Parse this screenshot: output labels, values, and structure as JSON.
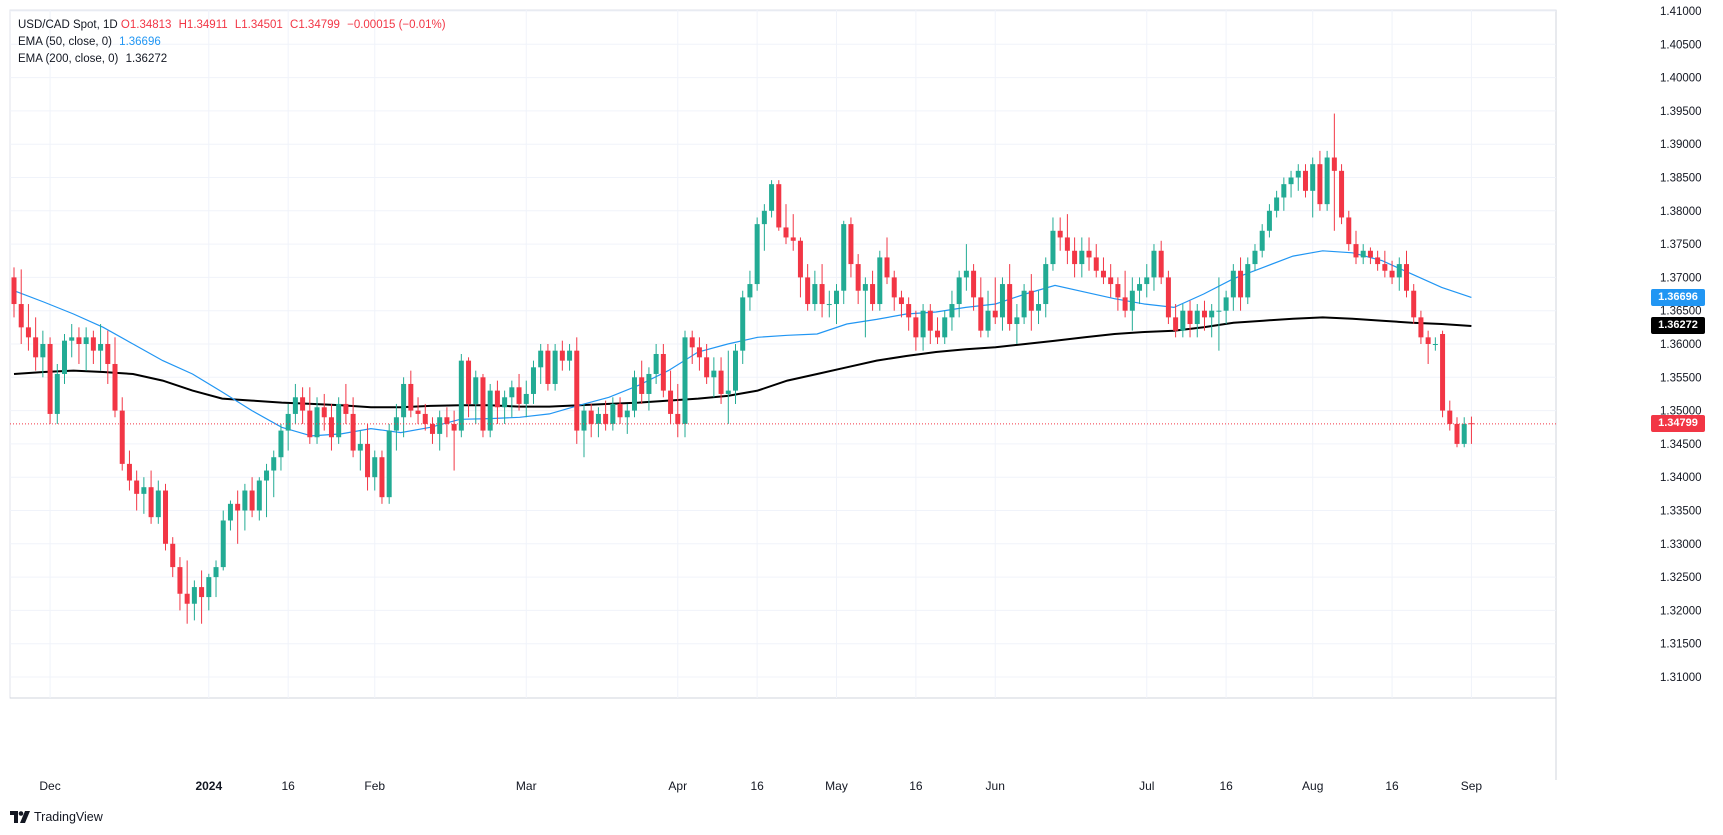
{
  "legend": {
    "symbol": "USD/CAD Spot, 1D",
    "open": "O1.34813",
    "high": "H1.34911",
    "low": "L1.34501",
    "close": "C1.34799",
    "change": "−0.00015 (−0.01%)",
    "ema50_label": "EMA (50, close, 0)",
    "ema50_value": "1.36696",
    "ema200_label": "EMA (200, close, 0)",
    "ema200_value": "1.36272"
  },
  "badges": {
    "ema50": "1.36696",
    "ema200": "1.36272",
    "last": "1.34799"
  },
  "brand": "TradingView",
  "colors": {
    "up": "#22ab94",
    "down": "#f23645",
    "ema50": "#2196f3",
    "ema200": "#000000",
    "grid": "#f0f3fa",
    "axis_text": "#131722"
  },
  "chart_data": {
    "type": "candlestick",
    "title": "USD/CAD Spot, 1D",
    "ylim": [
      1.305,
      1.41
    ],
    "y_ticks": [
      "1.41000",
      "1.40500",
      "1.40000",
      "1.39500",
      "1.39000",
      "1.38500",
      "1.38000",
      "1.37500",
      "1.37000",
      "1.36500",
      "1.36000",
      "1.35500",
      "1.35000",
      "1.34500",
      "1.34000",
      "1.33500",
      "1.33000",
      "1.32500",
      "1.32000",
      "1.31500",
      "1.31000"
    ],
    "x_ticks": [
      {
        "label": "Dec",
        "bar": 5
      },
      {
        "label": "2024",
        "bar": 27
      },
      {
        "label": "16",
        "bar": 38
      },
      {
        "label": "Feb",
        "bar": 50
      },
      {
        "label": "Mar",
        "bar": 71
      },
      {
        "label": "Apr",
        "bar": 92
      },
      {
        "label": "16",
        "bar": 103
      },
      {
        "label": "May",
        "bar": 114
      },
      {
        "label": "16",
        "bar": 125
      },
      {
        "label": "Jun",
        "bar": 136
      },
      {
        "label": "Jul",
        "bar": 157
      },
      {
        "label": "16",
        "bar": 168
      },
      {
        "label": "Aug",
        "bar": 180
      },
      {
        "label": "16",
        "bar": 191
      },
      {
        "label": "Sep",
        "bar": 202
      }
    ],
    "ema50": [
      1.368,
      1.3663,
      1.3645,
      1.3625,
      1.36,
      1.3575,
      1.3555,
      1.3528,
      1.35,
      1.3475,
      1.3462,
      1.3465,
      1.3473,
      1.3467,
      1.3475,
      1.3487,
      1.3488,
      1.349,
      1.3495,
      1.3508,
      1.352,
      1.3538,
      1.356,
      1.3588,
      1.36,
      1.361,
      1.3613,
      1.3615,
      1.363,
      1.3637,
      1.3645,
      1.3648,
      1.3655,
      1.366,
      1.3675,
      1.3688,
      1.3678,
      1.3668,
      1.366,
      1.3655,
      1.3675,
      1.3698,
      1.3715,
      1.3732,
      1.374,
      1.3737,
      1.3725,
      1.3705,
      1.3685,
      1.367
    ],
    "ema200": [
      1.3555,
      1.3558,
      1.356,
      1.3558,
      1.3555,
      1.3545,
      1.353,
      1.3518,
      1.3515,
      1.3512,
      1.351,
      1.3508,
      1.3505,
      1.3505,
      1.3507,
      1.3508,
      1.3508,
      1.3506,
      1.3506,
      1.3508,
      1.351,
      1.3512,
      1.3515,
      1.3518,
      1.3522,
      1.353,
      1.3545,
      1.3555,
      1.3565,
      1.3575,
      1.3582,
      1.3588,
      1.3592,
      1.3595,
      1.36,
      1.3605,
      1.361,
      1.3615,
      1.3618,
      1.362,
      1.3625,
      1.3632,
      1.3635,
      1.3638,
      1.364,
      1.3638,
      1.3635,
      1.3632,
      1.363,
      1.3627
    ],
    "ohlc": [
      [
        1.37,
        1.3715,
        1.364,
        1.366
      ],
      [
        1.366,
        1.3712,
        1.36,
        1.3625
      ],
      [
        1.3625,
        1.366,
        1.359,
        1.361
      ],
      [
        1.361,
        1.364,
        1.356,
        1.358
      ],
      [
        1.358,
        1.362,
        1.355,
        1.36
      ],
      [
        1.36,
        1.361,
        1.348,
        1.3495
      ],
      [
        1.3495,
        1.357,
        1.348,
        1.3555
      ],
      [
        1.3555,
        1.3615,
        1.354,
        1.3605
      ],
      [
        1.3605,
        1.363,
        1.358,
        1.361
      ],
      [
        1.361,
        1.3625,
        1.357,
        1.36
      ],
      [
        1.36,
        1.3625,
        1.356,
        1.361
      ],
      [
        1.361,
        1.362,
        1.357,
        1.359
      ],
      [
        1.359,
        1.363,
        1.356,
        1.36
      ],
      [
        1.36,
        1.362,
        1.354,
        1.357
      ],
      [
        1.357,
        1.361,
        1.349,
        1.35
      ],
      [
        1.35,
        1.352,
        1.341,
        1.342
      ],
      [
        1.342,
        1.344,
        1.338,
        1.3395
      ],
      [
        1.3395,
        1.341,
        1.335,
        1.3375
      ],
      [
        1.3375,
        1.34,
        1.3345,
        1.3385
      ],
      [
        1.3385,
        1.341,
        1.333,
        1.334
      ],
      [
        1.334,
        1.3395,
        1.333,
        1.338
      ],
      [
        1.338,
        1.339,
        1.329,
        1.33
      ],
      [
        1.33,
        1.331,
        1.325,
        1.3265
      ],
      [
        1.3265,
        1.328,
        1.32,
        1.3225
      ],
      [
        1.3225,
        1.3275,
        1.318,
        1.321
      ],
      [
        1.321,
        1.3245,
        1.3185,
        1.3235
      ],
      [
        1.3235,
        1.326,
        1.318,
        1.322
      ],
      [
        1.322,
        1.3255,
        1.32,
        1.325
      ],
      [
        1.325,
        1.3275,
        1.322,
        1.3265
      ],
      [
        1.3265,
        1.335,
        1.326,
        1.3335
      ],
      [
        1.3335,
        1.3365,
        1.332,
        1.336
      ],
      [
        1.336,
        1.338,
        1.33,
        1.335
      ],
      [
        1.335,
        1.339,
        1.332,
        1.338
      ],
      [
        1.338,
        1.34,
        1.334,
        1.335
      ],
      [
        1.335,
        1.34,
        1.3335,
        1.3395
      ],
      [
        1.3395,
        1.342,
        1.334,
        1.341
      ],
      [
        1.341,
        1.344,
        1.337,
        1.343
      ],
      [
        1.343,
        1.348,
        1.341,
        1.347
      ],
      [
        1.347,
        1.351,
        1.344,
        1.3495
      ],
      [
        1.3495,
        1.354,
        1.348,
        1.352
      ],
      [
        1.352,
        1.3535,
        1.348,
        1.35
      ],
      [
        1.35,
        1.3535,
        1.345,
        1.346
      ],
      [
        1.346,
        1.352,
        1.345,
        1.3505
      ],
      [
        1.3505,
        1.3525,
        1.347,
        1.349
      ],
      [
        1.349,
        1.351,
        1.344,
        1.346
      ],
      [
        1.346,
        1.352,
        1.345,
        1.351
      ],
      [
        1.351,
        1.354,
        1.348,
        1.3495
      ],
      [
        1.3495,
        1.352,
        1.343,
        1.344
      ],
      [
        1.344,
        1.347,
        1.341,
        1.345
      ],
      [
        1.345,
        1.348,
        1.338,
        1.34
      ],
      [
        1.34,
        1.344,
        1.338,
        1.343
      ],
      [
        1.343,
        1.344,
        1.336,
        1.337
      ],
      [
        1.337,
        1.348,
        1.336,
        1.347
      ],
      [
        1.347,
        1.351,
        1.344,
        1.349
      ],
      [
        1.349,
        1.355,
        1.346,
        1.354
      ],
      [
        1.354,
        1.356,
        1.349,
        1.35
      ],
      [
        1.35,
        1.352,
        1.348,
        1.3495
      ],
      [
        1.3495,
        1.351,
        1.347,
        1.348
      ],
      [
        1.348,
        1.349,
        1.345,
        1.3465
      ],
      [
        1.3465,
        1.35,
        1.344,
        1.349
      ],
      [
        1.349,
        1.3505,
        1.346,
        1.348
      ],
      [
        1.348,
        1.35,
        1.341,
        1.347
      ],
      [
        1.347,
        1.3585,
        1.346,
        1.3575
      ],
      [
        1.3575,
        1.358,
        1.349,
        1.351
      ],
      [
        1.351,
        1.356,
        1.348,
        1.355
      ],
      [
        1.355,
        1.3555,
        1.346,
        1.347
      ],
      [
        1.347,
        1.354,
        1.346,
        1.353
      ],
      [
        1.353,
        1.3545,
        1.348,
        1.3505
      ],
      [
        1.3505,
        1.353,
        1.348,
        1.352
      ],
      [
        1.352,
        1.3545,
        1.349,
        1.3535
      ],
      [
        1.3535,
        1.3555,
        1.35,
        1.351
      ],
      [
        1.351,
        1.3545,
        1.349,
        1.3525
      ],
      [
        1.3525,
        1.3575,
        1.351,
        1.3565
      ],
      [
        1.3565,
        1.36,
        1.354,
        1.359
      ],
      [
        1.359,
        1.36,
        1.353,
        1.354
      ],
      [
        1.354,
        1.36,
        1.353,
        1.359
      ],
      [
        1.359,
        1.3605,
        1.356,
        1.3575
      ],
      [
        1.3575,
        1.36,
        1.356,
        1.359
      ],
      [
        1.359,
        1.361,
        1.345,
        1.347
      ],
      [
        1.347,
        1.351,
        1.343,
        1.35
      ],
      [
        1.35,
        1.351,
        1.346,
        1.348
      ],
      [
        1.348,
        1.3505,
        1.346,
        1.3495
      ],
      [
        1.3495,
        1.3515,
        1.347,
        1.348
      ],
      [
        1.348,
        1.352,
        1.347,
        1.351
      ],
      [
        1.351,
        1.352,
        1.348,
        1.349
      ],
      [
        1.349,
        1.351,
        1.3465,
        1.35
      ],
      [
        1.35,
        1.356,
        1.349,
        1.355
      ],
      [
        1.355,
        1.3575,
        1.351,
        1.3525
      ],
      [
        1.3525,
        1.3565,
        1.35,
        1.3555
      ],
      [
        1.3555,
        1.36,
        1.354,
        1.3585
      ],
      [
        1.3585,
        1.36,
        1.352,
        1.353
      ],
      [
        1.353,
        1.356,
        1.348,
        1.3495
      ],
      [
        1.3495,
        1.354,
        1.346,
        1.348
      ],
      [
        1.348,
        1.362,
        1.346,
        1.361
      ],
      [
        1.361,
        1.362,
        1.357,
        1.3595
      ],
      [
        1.3595,
        1.361,
        1.356,
        1.358
      ],
      [
        1.358,
        1.36,
        1.354,
        1.355
      ],
      [
        1.355,
        1.358,
        1.352,
        1.356
      ],
      [
        1.356,
        1.358,
        1.351,
        1.3525
      ],
      [
        1.3525,
        1.359,
        1.348,
        1.353
      ],
      [
        1.353,
        1.36,
        1.351,
        1.359
      ],
      [
        1.359,
        1.368,
        1.357,
        1.367
      ],
      [
        1.367,
        1.371,
        1.365,
        1.369
      ],
      [
        1.369,
        1.379,
        1.368,
        1.378
      ],
      [
        1.378,
        1.381,
        1.374,
        1.38
      ],
      [
        1.38,
        1.3846,
        1.379,
        1.384
      ],
      [
        1.384,
        1.3846,
        1.377,
        1.3775
      ],
      [
        1.3775,
        1.381,
        1.375,
        1.376
      ],
      [
        1.376,
        1.3795,
        1.374,
        1.3755
      ],
      [
        1.3755,
        1.376,
        1.367,
        1.37
      ],
      [
        1.37,
        1.372,
        1.365,
        1.366
      ],
      [
        1.366,
        1.371,
        1.365,
        1.369
      ],
      [
        1.369,
        1.372,
        1.364,
        1.366
      ],
      [
        1.366,
        1.368,
        1.364,
        1.366
      ],
      [
        1.366,
        1.369,
        1.363,
        1.368
      ],
      [
        1.368,
        1.3785,
        1.366,
        1.378
      ],
      [
        1.378,
        1.379,
        1.37,
        1.372
      ],
      [
        1.372,
        1.3735,
        1.366,
        1.368
      ],
      [
        1.368,
        1.37,
        1.361,
        1.369
      ],
      [
        1.369,
        1.371,
        1.365,
        1.366
      ],
      [
        1.366,
        1.374,
        1.365,
        1.373
      ],
      [
        1.373,
        1.376,
        1.369,
        1.37
      ],
      [
        1.37,
        1.371,
        1.365,
        1.367
      ],
      [
        1.367,
        1.368,
        1.364,
        1.366
      ],
      [
        1.366,
        1.367,
        1.362,
        1.364
      ],
      [
        1.364,
        1.365,
        1.359,
        1.361
      ],
      [
        1.361,
        1.366,
        1.359,
        1.365
      ],
      [
        1.365,
        1.366,
        1.36,
        1.362
      ],
      [
        1.362,
        1.364,
        1.36,
        1.361
      ],
      [
        1.361,
        1.365,
        1.36,
        1.364
      ],
      [
        1.364,
        1.368,
        1.362,
        1.366
      ],
      [
        1.366,
        1.371,
        1.364,
        1.37
      ],
      [
        1.37,
        1.375,
        1.368,
        1.371
      ],
      [
        1.371,
        1.372,
        1.365,
        1.367
      ],
      [
        1.367,
        1.37,
        1.361,
        1.362
      ],
      [
        1.362,
        1.368,
        1.361,
        1.365
      ],
      [
        1.365,
        1.37,
        1.363,
        1.364
      ],
      [
        1.364,
        1.37,
        1.362,
        1.369
      ],
      [
        1.369,
        1.372,
        1.362,
        1.363
      ],
      [
        1.363,
        1.366,
        1.36,
        1.364
      ],
      [
        1.364,
        1.369,
        1.363,
        1.368
      ],
      [
        1.368,
        1.3705,
        1.362,
        1.365
      ],
      [
        1.365,
        1.368,
        1.363,
        1.366
      ],
      [
        1.366,
        1.373,
        1.364,
        1.372
      ],
      [
        1.372,
        1.379,
        1.371,
        1.377
      ],
      [
        1.377,
        1.379,
        1.374,
        1.376
      ],
      [
        1.376,
        1.3795,
        1.372,
        1.374
      ],
      [
        1.374,
        1.376,
        1.37,
        1.372
      ],
      [
        1.372,
        1.376,
        1.37,
        1.374
      ],
      [
        1.374,
        1.376,
        1.371,
        1.373
      ],
      [
        1.373,
        1.375,
        1.37,
        1.371
      ],
      [
        1.371,
        1.373,
        1.369,
        1.37
      ],
      [
        1.37,
        1.372,
        1.367,
        1.369
      ],
      [
        1.369,
        1.37,
        1.365,
        1.367
      ],
      [
        1.367,
        1.371,
        1.364,
        1.365
      ],
      [
        1.365,
        1.37,
        1.362,
        1.368
      ],
      [
        1.368,
        1.37,
        1.366,
        1.369
      ],
      [
        1.369,
        1.372,
        1.367,
        1.37
      ],
      [
        1.37,
        1.375,
        1.368,
        1.374
      ],
      [
        1.374,
        1.3755,
        1.369,
        1.37
      ],
      [
        1.37,
        1.371,
        1.363,
        1.364
      ],
      [
        1.364,
        1.366,
        1.361,
        1.362
      ],
      [
        1.362,
        1.366,
        1.361,
        1.365
      ],
      [
        1.365,
        1.3665,
        1.361,
        1.363
      ],
      [
        1.363,
        1.366,
        1.361,
        1.365
      ],
      [
        1.365,
        1.3665,
        1.362,
        1.364
      ],
      [
        1.364,
        1.366,
        1.361,
        1.365
      ],
      [
        1.365,
        1.37,
        1.359,
        1.365
      ],
      [
        1.365,
        1.368,
        1.363,
        1.367
      ],
      [
        1.367,
        1.372,
        1.365,
        1.371
      ],
      [
        1.371,
        1.373,
        1.365,
        1.367
      ],
      [
        1.367,
        1.373,
        1.366,
        1.372
      ],
      [
        1.372,
        1.375,
        1.371,
        1.374
      ],
      [
        1.374,
        1.378,
        1.373,
        1.377
      ],
      [
        1.377,
        1.381,
        1.376,
        1.38
      ],
      [
        1.38,
        1.383,
        1.379,
        1.382
      ],
      [
        1.382,
        1.385,
        1.38,
        1.384
      ],
      [
        1.384,
        1.386,
        1.382,
        1.385
      ],
      [
        1.385,
        1.387,
        1.383,
        1.386
      ],
      [
        1.386,
        1.387,
        1.382,
        1.383
      ],
      [
        1.383,
        1.388,
        1.379,
        1.387
      ],
      [
        1.387,
        1.389,
        1.38,
        1.381
      ],
      [
        1.381,
        1.389,
        1.38,
        1.388
      ],
      [
        1.388,
        1.3946,
        1.377,
        1.386
      ],
      [
        1.386,
        1.387,
        1.378,
        1.379
      ],
      [
        1.379,
        1.38,
        1.374,
        1.375
      ],
      [
        1.375,
        1.377,
        1.372,
        1.373
      ],
      [
        1.373,
        1.375,
        1.372,
        1.374
      ],
      [
        1.374,
        1.3745,
        1.372,
        1.373
      ],
      [
        1.373,
        1.374,
        1.371,
        1.372
      ],
      [
        1.372,
        1.374,
        1.37,
        1.371
      ],
      [
        1.371,
        1.3725,
        1.369,
        1.37
      ],
      [
        1.37,
        1.373,
        1.368,
        1.372
      ],
      [
        1.372,
        1.374,
        1.367,
        1.368
      ],
      [
        1.368,
        1.369,
        1.363,
        1.364
      ],
      [
        1.364,
        1.365,
        1.36,
        1.361
      ],
      [
        1.361,
        1.362,
        1.357,
        1.36
      ],
      [
        1.36,
        1.361,
        1.359,
        1.36
      ],
      [
        1.3615,
        1.362,
        1.349,
        1.35
      ],
      [
        1.35,
        1.3515,
        1.347,
        1.348
      ],
      [
        1.348,
        1.349,
        1.3445,
        1.345
      ],
      [
        1.345,
        1.349,
        1.3445,
        1.348
      ],
      [
        1.3481,
        1.3491,
        1.345,
        1.348
      ]
    ]
  }
}
